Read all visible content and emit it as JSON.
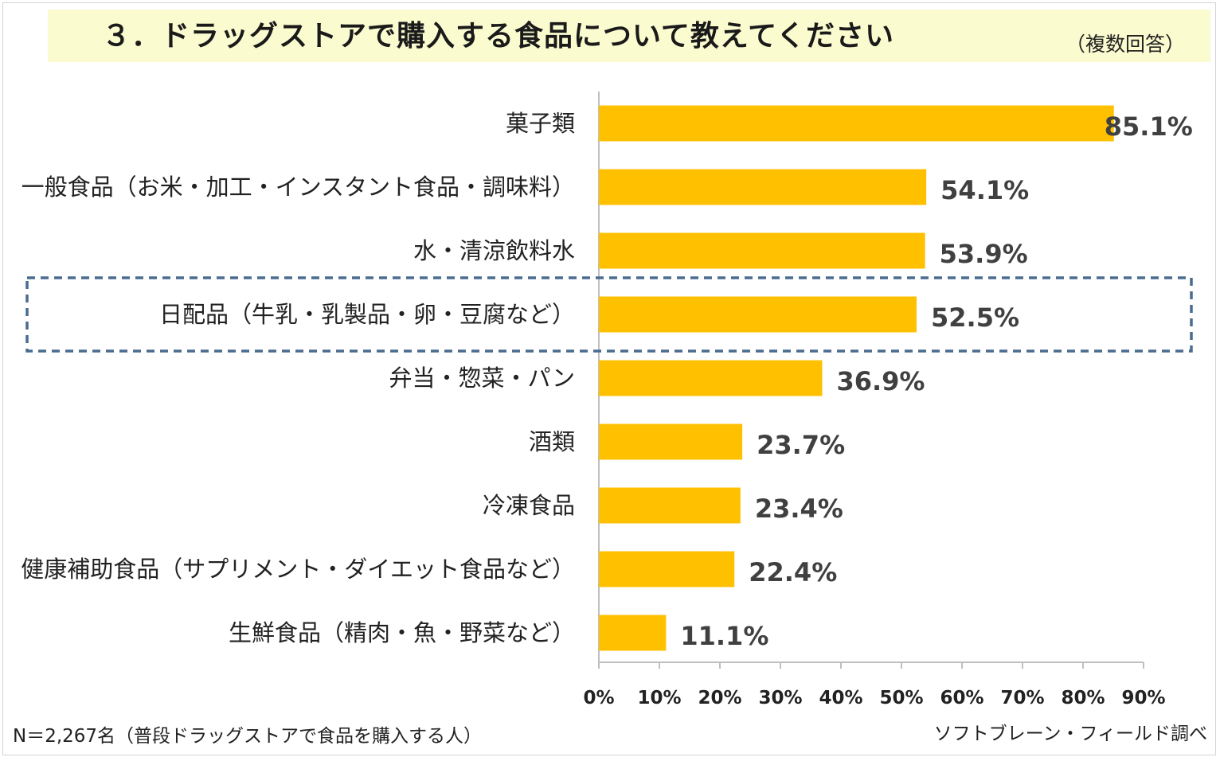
{
  "title": "３．ドラッグストアで購入する食品について教えてください",
  "subtitle": "（複数回答）",
  "footer_left": "N＝2,267名（普段ドラッグストアで食品を購入する人）",
  "footer_right": "ソフトブレーン・フィールド調べ",
  "colors": {
    "bar": "#FFC000",
    "highlight_box": "#4A6C8F",
    "title_band": "#FBFBD0"
  },
  "chart_data": {
    "type": "bar",
    "orientation": "horizontal",
    "categories": [
      "菓子類",
      "一般食品（お米・加工・インスタント食品・調味料）",
      "水・清涼飲料水",
      "日配品（牛乳・乳製品・卵・豆腐など）",
      "弁当・惣菜・パン",
      "酒類",
      "冷凍食品",
      "健康補助食品（サプリメント・ダイエット食品など）",
      "生鮮食品（精肉・魚・野菜など）"
    ],
    "values": [
      85.1,
      54.1,
      53.9,
      52.5,
      36.9,
      23.7,
      23.4,
      22.4,
      11.1
    ],
    "value_labels": [
      "85.1%",
      "54.1%",
      "53.9%",
      "52.5%",
      "36.9%",
      "23.7%",
      "23.4%",
      "22.4%",
      "11.1%"
    ],
    "xlim": [
      0,
      90
    ],
    "x_ticks": [
      "0%",
      "10%",
      "20%",
      "30%",
      "40%",
      "50%",
      "60%",
      "70%",
      "80%",
      "90%"
    ],
    "highlighted_category": "日配品（牛乳・乳製品・卵・豆腐など）",
    "grid": false
  }
}
